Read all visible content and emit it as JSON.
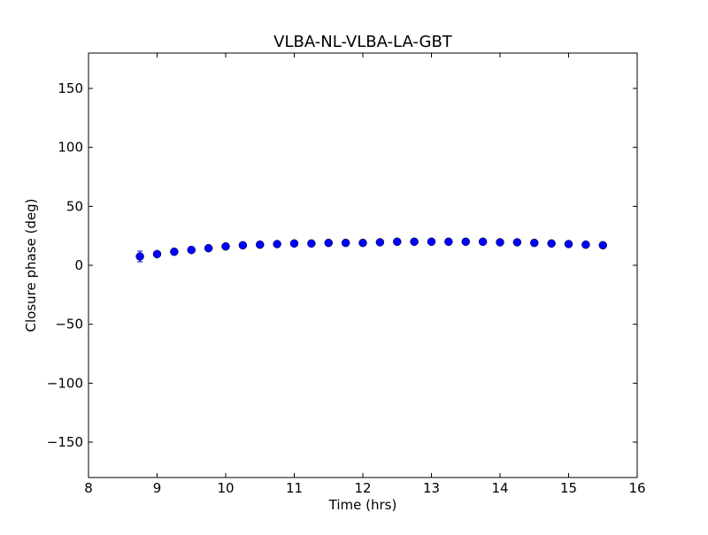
{
  "chart_data": {
    "type": "scatter",
    "title": "VLBA-NL-VLBA-LA-GBT",
    "xlabel": "Time (hrs)",
    "ylabel": "Closure phase (deg)",
    "xlim": [
      8,
      16
    ],
    "ylim": [
      -180,
      180
    ],
    "xticks": [
      8,
      9,
      10,
      11,
      12,
      13,
      14,
      15,
      16
    ],
    "xtick_labels": [
      "8",
      "9",
      "10",
      "11",
      "12",
      "13",
      "14",
      "15",
      "16"
    ],
    "yticks": [
      -150,
      -100,
      -50,
      0,
      50,
      100,
      150
    ],
    "ytick_labels": [
      "−150",
      "−100",
      "−50",
      "0",
      "50",
      "100",
      "150"
    ],
    "grid": false,
    "marker_color": "#0000ff",
    "marker_edge_color": "#000000",
    "series": [
      {
        "x": [
          8.75,
          9.0,
          9.25,
          9.5,
          9.75,
          10.0,
          10.25,
          10.5,
          10.75,
          11.0,
          11.25,
          11.5,
          11.75,
          12.0,
          12.25,
          12.5,
          12.75,
          13.0,
          13.25,
          13.5,
          13.75,
          14.0,
          14.25,
          14.5,
          14.75,
          15.0,
          15.25,
          15.5
        ],
        "y": [
          7.5,
          9.5,
          11.5,
          13.0,
          14.5,
          16.0,
          17.0,
          17.5,
          18.0,
          18.5,
          18.5,
          19.0,
          19.0,
          19.0,
          19.5,
          20.0,
          20.0,
          20.0,
          20.0,
          20.0,
          20.0,
          19.5,
          19.5,
          19.0,
          18.5,
          18.0,
          17.5,
          17.0
        ],
        "yerr": [
          4.5,
          2.0,
          1.5,
          1.0,
          1.0,
          1.0,
          1.0,
          1.0,
          1.0,
          1.0,
          1.0,
          1.0,
          1.0,
          1.0,
          1.0,
          1.0,
          1.0,
          1.0,
          1.0,
          1.0,
          1.0,
          1.0,
          1.0,
          1.0,
          1.0,
          1.0,
          1.0,
          1.0
        ]
      }
    ]
  }
}
